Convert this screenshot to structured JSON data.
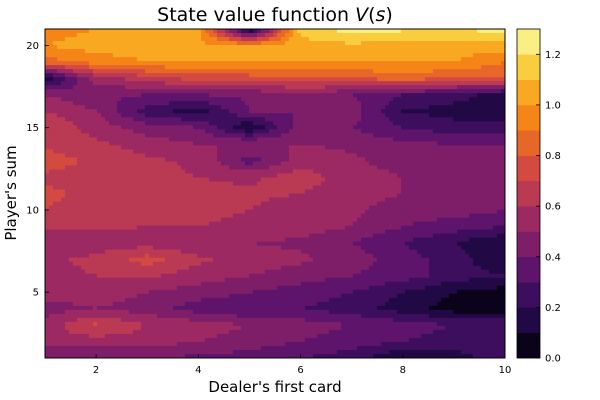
{
  "chart_data": {
    "type": "heatmap",
    "subtype": "filled-contour",
    "title": "State value function V(s)",
    "xlabel": "Dealer's first card",
    "ylabel": "Player's sum",
    "xlim": [
      1,
      10
    ],
    "ylim": [
      1,
      21
    ],
    "x_ticks": [
      2,
      4,
      6,
      8,
      10
    ],
    "y_ticks": [
      5,
      10,
      15,
      20
    ],
    "colorbar": {
      "colormap": "inferno",
      "range": [
        0,
        1.3
      ],
      "levels": [
        0.0,
        0.1,
        0.2,
        0.3,
        0.4,
        0.5,
        0.6,
        0.7,
        0.8,
        0.9,
        1.0,
        1.1,
        1.2,
        1.3
      ],
      "ticks": [
        0.0,
        0.2,
        0.4,
        0.6,
        0.8,
        1.0,
        1.2
      ],
      "tick_labels": [
        "0.0",
        "0.2",
        "0.4",
        "0.6",
        "0.8",
        "1.0",
        "1.2"
      ]
    },
    "x": [
      1,
      2,
      3,
      4,
      5,
      6,
      7,
      8,
      9,
      10
    ],
    "y": [
      1,
      2,
      3,
      4,
      5,
      6,
      7,
      8,
      9,
      10,
      11,
      12,
      13,
      14,
      15,
      16,
      17,
      18,
      19,
      20,
      21
    ],
    "z": [
      [
        0.4,
        0.42,
        0.4,
        0.38,
        0.35,
        0.3,
        0.25,
        0.1,
        0.15,
        0.25
      ],
      [
        0.55,
        0.55,
        0.55,
        0.5,
        0.45,
        0.4,
        0.35,
        0.3,
        0.25,
        0.3
      ],
      [
        0.55,
        0.72,
        0.6,
        0.55,
        0.5,
        0.45,
        0.4,
        0.35,
        0.3,
        0.3
      ],
      [
        0.45,
        0.5,
        0.45,
        0.35,
        0.3,
        0.3,
        0.25,
        0.15,
        0.05,
        0.05
      ],
      [
        0.55,
        0.55,
        0.5,
        0.45,
        0.4,
        0.35,
        0.3,
        0.2,
        0.1,
        0.05
      ],
      [
        0.58,
        0.6,
        0.62,
        0.55,
        0.5,
        0.45,
        0.4,
        0.35,
        0.25,
        0.2
      ],
      [
        0.58,
        0.62,
        0.75,
        0.62,
        0.55,
        0.52,
        0.45,
        0.35,
        0.25,
        0.1
      ],
      [
        0.52,
        0.55,
        0.55,
        0.52,
        0.5,
        0.48,
        0.4,
        0.3,
        0.2,
        0.1
      ],
      [
        0.62,
        0.62,
        0.6,
        0.6,
        0.58,
        0.55,
        0.5,
        0.4,
        0.35,
        0.3
      ],
      [
        0.7,
        0.65,
        0.65,
        0.62,
        0.6,
        0.55,
        0.52,
        0.45,
        0.45,
        0.4
      ],
      [
        0.72,
        0.68,
        0.65,
        0.62,
        0.62,
        0.6,
        0.55,
        0.5,
        0.45,
        0.45
      ],
      [
        0.68,
        0.65,
        0.62,
        0.6,
        0.58,
        0.65,
        0.55,
        0.5,
        0.5,
        0.45
      ],
      [
        0.75,
        0.68,
        0.62,
        0.58,
        0.35,
        0.55,
        0.52,
        0.45,
        0.4,
        0.42
      ],
      [
        0.68,
        0.62,
        0.55,
        0.5,
        0.5,
        0.5,
        0.48,
        0.42,
        0.4,
        0.4
      ],
      [
        0.7,
        0.55,
        0.45,
        0.4,
        0.1,
        0.45,
        0.4,
        0.3,
        0.25,
        0.25
      ],
      [
        0.6,
        0.5,
        0.25,
        0.15,
        0.4,
        0.4,
        0.45,
        0.2,
        0.15,
        0.1
      ],
      [
        0.5,
        0.42,
        0.4,
        0.4,
        0.42,
        0.45,
        0.4,
        0.3,
        0.25,
        0.15
      ],
      [
        0.1,
        0.55,
        0.65,
        0.75,
        0.75,
        0.8,
        0.8,
        0.85,
        0.8,
        0.8
      ],
      [
        0.85,
        0.95,
        1.0,
        1.0,
        1.0,
        1.0,
        1.0,
        1.0,
        1.0,
        0.9
      ],
      [
        1.0,
        1.05,
        1.05,
        1.02,
        1.0,
        1.05,
        1.08,
        1.05,
        1.05,
        1.05
      ],
      [
        0.95,
        1.0,
        1.0,
        1.05,
        0.05,
        1.15,
        1.25,
        1.22,
        1.2,
        1.25
      ]
    ]
  }
}
